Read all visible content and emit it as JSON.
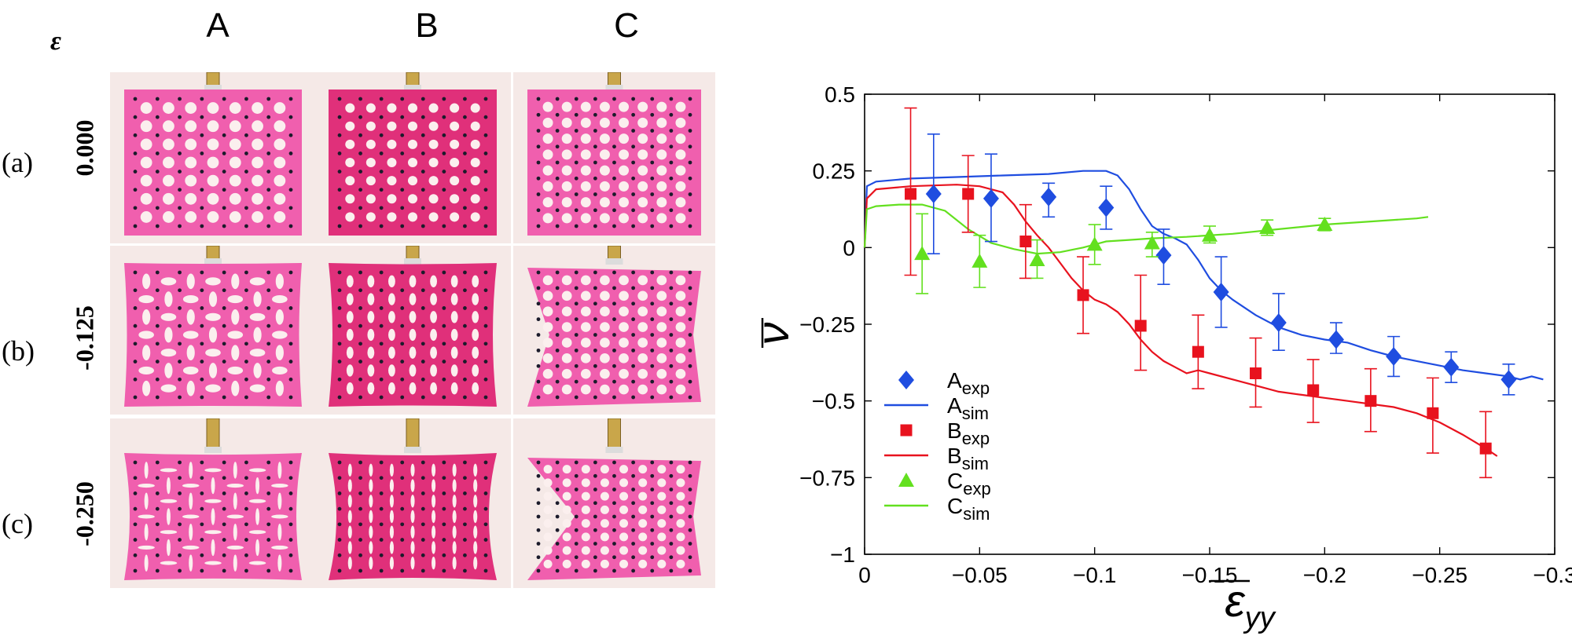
{
  "photo_grid": {
    "epsilon_symbol": "ε",
    "columns": [
      "A",
      "B",
      "C"
    ],
    "rows": [
      {
        "label": "(a)",
        "strain": "0.000"
      },
      {
        "label": "(b)",
        "strain": "-0.125"
      },
      {
        "label": "(c)",
        "strain": "-0.250"
      }
    ]
  },
  "colors": {
    "A": "#1f4de0",
    "B": "#e8121e",
    "C": "#63e01f",
    "specimen": "#f05fae",
    "specimen_dark": "#e0307a",
    "background_photo": "#f5e9e7"
  },
  "chart_data": {
    "type": "scatter",
    "xlabel": "ε_yy",
    "ylabel": "ν",
    "xlim": [
      0,
      -0.3
    ],
    "ylim": [
      -1,
      0.5
    ],
    "xticks": [
      0,
      -0.05,
      -0.1,
      -0.15,
      -0.2,
      -0.25,
      -0.3
    ],
    "xtick_labels": [
      "0",
      "−0.05",
      "−0.1",
      "−0.15",
      "−0.2",
      "−0.25",
      "−0.3"
    ],
    "yticks": [
      0.5,
      0.25,
      0,
      -0.25,
      -0.5,
      -0.75,
      -1
    ],
    "ytick_labels": [
      "0.5",
      "0.25",
      "0",
      "−0.25",
      "−0.5",
      "−0.75",
      "−1"
    ],
    "legend_position": "lower-left",
    "legend": [
      {
        "base": "A",
        "sub": "exp",
        "kind": "marker",
        "marker": "diamond",
        "series": "A"
      },
      {
        "base": "A",
        "sub": "sim",
        "kind": "line",
        "series": "A"
      },
      {
        "base": "B",
        "sub": "exp",
        "kind": "marker",
        "marker": "square",
        "series": "B"
      },
      {
        "base": "B",
        "sub": "sim",
        "kind": "line",
        "series": "B"
      },
      {
        "base": "C",
        "sub": "exp",
        "kind": "marker",
        "marker": "triangle",
        "series": "C"
      },
      {
        "base": "C",
        "sub": "sim",
        "kind": "line",
        "series": "C"
      }
    ],
    "experimental": [
      {
        "series": "A",
        "marker": "diamond",
        "points": [
          {
            "x": -0.03,
            "y": 0.175,
            "lo": -0.02,
            "hi": 0.37
          },
          {
            "x": -0.055,
            "y": 0.16,
            "lo": 0.02,
            "hi": 0.305
          },
          {
            "x": -0.08,
            "y": 0.165,
            "lo": 0.1,
            "hi": 0.21
          },
          {
            "x": -0.105,
            "y": 0.13,
            "lo": 0.06,
            "hi": 0.2
          },
          {
            "x": -0.13,
            "y": -0.025,
            "lo": -0.12,
            "hi": 0.06
          },
          {
            "x": -0.155,
            "y": -0.145,
            "lo": -0.26,
            "hi": -0.03
          },
          {
            "x": -0.18,
            "y": -0.245,
            "lo": -0.335,
            "hi": -0.15
          },
          {
            "x": -0.205,
            "y": -0.3,
            "lo": -0.345,
            "hi": -0.245
          },
          {
            "x": -0.23,
            "y": -0.355,
            "lo": -0.42,
            "hi": -0.29
          },
          {
            "x": -0.255,
            "y": -0.39,
            "lo": -0.44,
            "hi": -0.34
          },
          {
            "x": -0.28,
            "y": -0.43,
            "lo": -0.48,
            "hi": -0.38
          }
        ]
      },
      {
        "series": "B",
        "marker": "square",
        "points": [
          {
            "x": -0.02,
            "y": 0.175,
            "lo": -0.09,
            "hi": 0.455
          },
          {
            "x": -0.045,
            "y": 0.175,
            "lo": 0.05,
            "hi": 0.3
          },
          {
            "x": -0.07,
            "y": 0.02,
            "lo": -0.1,
            "hi": 0.14
          },
          {
            "x": -0.095,
            "y": -0.155,
            "lo": -0.28,
            "hi": -0.03
          },
          {
            "x": -0.12,
            "y": -0.255,
            "lo": -0.4,
            "hi": -0.09
          },
          {
            "x": -0.145,
            "y": -0.34,
            "lo": -0.46,
            "hi": -0.22
          },
          {
            "x": -0.17,
            "y": -0.41,
            "lo": -0.52,
            "hi": -0.295
          },
          {
            "x": -0.195,
            "y": -0.465,
            "lo": -0.57,
            "hi": -0.365
          },
          {
            "x": -0.22,
            "y": -0.5,
            "lo": -0.6,
            "hi": -0.395
          },
          {
            "x": -0.247,
            "y": -0.54,
            "lo": -0.67,
            "hi": -0.425
          },
          {
            "x": -0.27,
            "y": -0.655,
            "lo": -0.75,
            "hi": -0.535
          }
        ]
      },
      {
        "series": "C",
        "marker": "triangle",
        "points": [
          {
            "x": -0.025,
            "y": -0.02,
            "lo": -0.15,
            "hi": 0.11
          },
          {
            "x": -0.05,
            "y": -0.045,
            "lo": -0.13,
            "hi": 0.04
          },
          {
            "x": -0.075,
            "y": -0.04,
            "lo": -0.1,
            "hi": 0.025
          },
          {
            "x": -0.1,
            "y": 0.01,
            "lo": -0.055,
            "hi": 0.075
          },
          {
            "x": -0.125,
            "y": 0.015,
            "lo": -0.03,
            "hi": 0.05
          },
          {
            "x": -0.15,
            "y": 0.04,
            "lo": 0.015,
            "hi": 0.07
          },
          {
            "x": -0.175,
            "y": 0.065,
            "lo": 0.04,
            "hi": 0.09
          },
          {
            "x": -0.2,
            "y": 0.075,
            "lo": 0.055,
            "hi": 0.095
          }
        ]
      }
    ],
    "simulation": [
      {
        "series": "A",
        "points": [
          [
            0,
            0.0
          ],
          [
            -0.001,
            0.2
          ],
          [
            -0.005,
            0.215
          ],
          [
            -0.02,
            0.225
          ],
          [
            -0.04,
            0.23
          ],
          [
            -0.06,
            0.235
          ],
          [
            -0.08,
            0.24
          ],
          [
            -0.095,
            0.25
          ],
          [
            -0.105,
            0.25
          ],
          [
            -0.11,
            0.235
          ],
          [
            -0.115,
            0.19
          ],
          [
            -0.12,
            0.125
          ],
          [
            -0.125,
            0.07
          ],
          [
            -0.13,
            0.045
          ],
          [
            -0.135,
            0.03
          ],
          [
            -0.14,
            0.01
          ],
          [
            -0.145,
            -0.04
          ],
          [
            -0.15,
            -0.1
          ],
          [
            -0.155,
            -0.14
          ],
          [
            -0.16,
            -0.17
          ],
          [
            -0.17,
            -0.22
          ],
          [
            -0.18,
            -0.26
          ],
          [
            -0.19,
            -0.285
          ],
          [
            -0.2,
            -0.3
          ],
          [
            -0.21,
            -0.31
          ],
          [
            -0.22,
            -0.335
          ],
          [
            -0.23,
            -0.355
          ],
          [
            -0.24,
            -0.37
          ],
          [
            -0.25,
            -0.385
          ],
          [
            -0.26,
            -0.4
          ],
          [
            -0.27,
            -0.41
          ],
          [
            -0.28,
            -0.42
          ],
          [
            -0.285,
            -0.43
          ],
          [
            -0.29,
            -0.42
          ],
          [
            -0.295,
            -0.43
          ]
        ]
      },
      {
        "series": "B",
        "points": [
          [
            0,
            0.0
          ],
          [
            -0.001,
            0.16
          ],
          [
            -0.005,
            0.19
          ],
          [
            -0.02,
            0.2
          ],
          [
            -0.04,
            0.205
          ],
          [
            -0.05,
            0.2
          ],
          [
            -0.06,
            0.18
          ],
          [
            -0.065,
            0.14
          ],
          [
            -0.07,
            0.085
          ],
          [
            -0.075,
            0.04
          ],
          [
            -0.08,
            0.0
          ],
          [
            -0.085,
            -0.05
          ],
          [
            -0.09,
            -0.1
          ],
          [
            -0.095,
            -0.14
          ],
          [
            -0.1,
            -0.17
          ],
          [
            -0.105,
            -0.185
          ],
          [
            -0.11,
            -0.21
          ],
          [
            -0.115,
            -0.25
          ],
          [
            -0.12,
            -0.3
          ],
          [
            -0.125,
            -0.34
          ],
          [
            -0.13,
            -0.37
          ],
          [
            -0.135,
            -0.39
          ],
          [
            -0.14,
            -0.41
          ],
          [
            -0.145,
            -0.4
          ],
          [
            -0.15,
            -0.41
          ],
          [
            -0.16,
            -0.43
          ],
          [
            -0.17,
            -0.45
          ],
          [
            -0.18,
            -0.47
          ],
          [
            -0.19,
            -0.48
          ],
          [
            -0.2,
            -0.49
          ],
          [
            -0.21,
            -0.5
          ],
          [
            -0.22,
            -0.51
          ],
          [
            -0.23,
            -0.52
          ],
          [
            -0.24,
            -0.54
          ],
          [
            -0.25,
            -0.57
          ],
          [
            -0.26,
            -0.61
          ],
          [
            -0.27,
            -0.655
          ],
          [
            -0.275,
            -0.68
          ]
        ]
      },
      {
        "series": "C",
        "points": [
          [
            0,
            0.0
          ],
          [
            -0.001,
            0.125
          ],
          [
            -0.005,
            0.135
          ],
          [
            -0.015,
            0.14
          ],
          [
            -0.025,
            0.14
          ],
          [
            -0.035,
            0.12
          ],
          [
            -0.045,
            0.06
          ],
          [
            -0.055,
            0.015
          ],
          [
            -0.065,
            -0.005
          ],
          [
            -0.075,
            -0.02
          ],
          [
            -0.085,
            -0.015
          ],
          [
            -0.095,
            0.0
          ],
          [
            -0.105,
            0.02
          ],
          [
            -0.115,
            0.025
          ],
          [
            -0.125,
            0.03
          ],
          [
            -0.14,
            0.035
          ],
          [
            -0.16,
            0.045
          ],
          [
            -0.18,
            0.06
          ],
          [
            -0.2,
            0.075
          ],
          [
            -0.22,
            0.085
          ],
          [
            -0.24,
            0.095
          ],
          [
            -0.245,
            0.1
          ]
        ]
      }
    ]
  }
}
